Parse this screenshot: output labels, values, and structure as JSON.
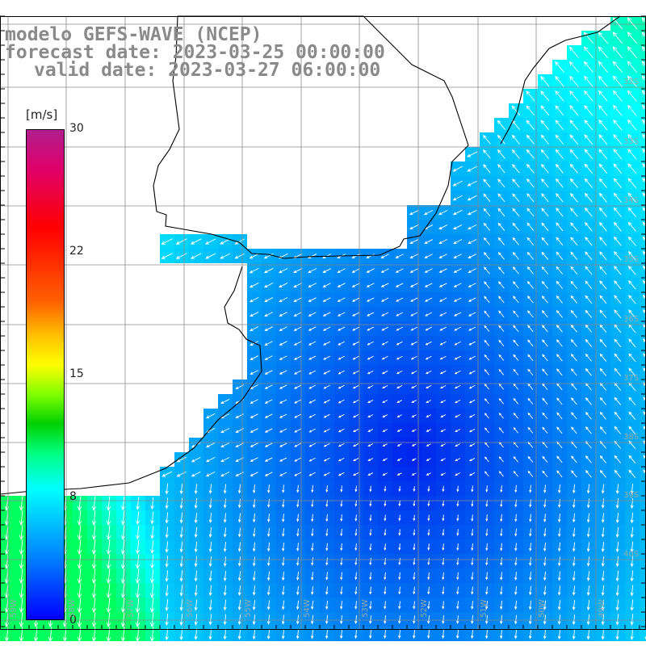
{
  "title": {
    "line1": "modelo GEFS-WAVE (NCEP)",
    "line2": "forecast date: 2023-03-25 00:00:00",
    "line3": "valid date: 2023-03-27 06:00:00"
  },
  "colorbar": {
    "unit": "[m/s]",
    "ticks": [
      "30",
      "22",
      "15",
      "8",
      "0"
    ],
    "range": [
      0,
      30
    ]
  },
  "lat_labels": [
    "32S",
    "33S",
    "34S",
    "35S",
    "36S",
    "37S",
    "38S",
    "39S",
    "40S"
  ],
  "lon_labels": [
    "59W",
    "58W",
    "57W",
    "56W",
    "55W",
    "54W",
    "53W",
    "52W",
    "51W",
    "50W",
    "49W"
  ],
  "colors": {
    "ocean_low": "#0010f0",
    "ocean_high": "#00e0ff",
    "coast": "#000000",
    "grid": "#8c8c8c"
  }
}
